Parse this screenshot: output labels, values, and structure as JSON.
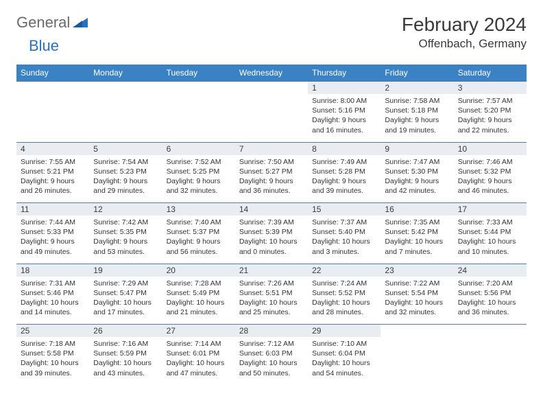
{
  "logo": {
    "part1": "General",
    "part2": "Blue"
  },
  "title": "February 2024",
  "location": "Offenbach, Germany",
  "colors": {
    "header_bg": "#3b82c4",
    "header_text": "#ffffff",
    "daynum_bg": "#e9edf2",
    "border": "#5a7a9a",
    "logo_gray": "#6a6a6a",
    "logo_blue": "#2a71b8"
  },
  "daysOfWeek": [
    "Sunday",
    "Monday",
    "Tuesday",
    "Wednesday",
    "Thursday",
    "Friday",
    "Saturday"
  ],
  "weeks": [
    [
      null,
      null,
      null,
      null,
      {
        "n": "1",
        "sr": "8:00 AM",
        "ss": "5:16 PM",
        "dl": "9 hours and 16 minutes."
      },
      {
        "n": "2",
        "sr": "7:58 AM",
        "ss": "5:18 PM",
        "dl": "9 hours and 19 minutes."
      },
      {
        "n": "3",
        "sr": "7:57 AM",
        "ss": "5:20 PM",
        "dl": "9 hours and 22 minutes."
      }
    ],
    [
      {
        "n": "4",
        "sr": "7:55 AM",
        "ss": "5:21 PM",
        "dl": "9 hours and 26 minutes."
      },
      {
        "n": "5",
        "sr": "7:54 AM",
        "ss": "5:23 PM",
        "dl": "9 hours and 29 minutes."
      },
      {
        "n": "6",
        "sr": "7:52 AM",
        "ss": "5:25 PM",
        "dl": "9 hours and 32 minutes."
      },
      {
        "n": "7",
        "sr": "7:50 AM",
        "ss": "5:27 PM",
        "dl": "9 hours and 36 minutes."
      },
      {
        "n": "8",
        "sr": "7:49 AM",
        "ss": "5:28 PM",
        "dl": "9 hours and 39 minutes."
      },
      {
        "n": "9",
        "sr": "7:47 AM",
        "ss": "5:30 PM",
        "dl": "9 hours and 42 minutes."
      },
      {
        "n": "10",
        "sr": "7:46 AM",
        "ss": "5:32 PM",
        "dl": "9 hours and 46 minutes."
      }
    ],
    [
      {
        "n": "11",
        "sr": "7:44 AM",
        "ss": "5:33 PM",
        "dl": "9 hours and 49 minutes."
      },
      {
        "n": "12",
        "sr": "7:42 AM",
        "ss": "5:35 PM",
        "dl": "9 hours and 53 minutes."
      },
      {
        "n": "13",
        "sr": "7:40 AM",
        "ss": "5:37 PM",
        "dl": "9 hours and 56 minutes."
      },
      {
        "n": "14",
        "sr": "7:39 AM",
        "ss": "5:39 PM",
        "dl": "10 hours and 0 minutes."
      },
      {
        "n": "15",
        "sr": "7:37 AM",
        "ss": "5:40 PM",
        "dl": "10 hours and 3 minutes."
      },
      {
        "n": "16",
        "sr": "7:35 AM",
        "ss": "5:42 PM",
        "dl": "10 hours and 7 minutes."
      },
      {
        "n": "17",
        "sr": "7:33 AM",
        "ss": "5:44 PM",
        "dl": "10 hours and 10 minutes."
      }
    ],
    [
      {
        "n": "18",
        "sr": "7:31 AM",
        "ss": "5:46 PM",
        "dl": "10 hours and 14 minutes."
      },
      {
        "n": "19",
        "sr": "7:29 AM",
        "ss": "5:47 PM",
        "dl": "10 hours and 17 minutes."
      },
      {
        "n": "20",
        "sr": "7:28 AM",
        "ss": "5:49 PM",
        "dl": "10 hours and 21 minutes."
      },
      {
        "n": "21",
        "sr": "7:26 AM",
        "ss": "5:51 PM",
        "dl": "10 hours and 25 minutes."
      },
      {
        "n": "22",
        "sr": "7:24 AM",
        "ss": "5:52 PM",
        "dl": "10 hours and 28 minutes."
      },
      {
        "n": "23",
        "sr": "7:22 AM",
        "ss": "5:54 PM",
        "dl": "10 hours and 32 minutes."
      },
      {
        "n": "24",
        "sr": "7:20 AM",
        "ss": "5:56 PM",
        "dl": "10 hours and 36 minutes."
      }
    ],
    [
      {
        "n": "25",
        "sr": "7:18 AM",
        "ss": "5:58 PM",
        "dl": "10 hours and 39 minutes."
      },
      {
        "n": "26",
        "sr": "7:16 AM",
        "ss": "5:59 PM",
        "dl": "10 hours and 43 minutes."
      },
      {
        "n": "27",
        "sr": "7:14 AM",
        "ss": "6:01 PM",
        "dl": "10 hours and 47 minutes."
      },
      {
        "n": "28",
        "sr": "7:12 AM",
        "ss": "6:03 PM",
        "dl": "10 hours and 50 minutes."
      },
      {
        "n": "29",
        "sr": "7:10 AM",
        "ss": "6:04 PM",
        "dl": "10 hours and 54 minutes."
      },
      null,
      null
    ]
  ],
  "labels": {
    "sunrise": "Sunrise: ",
    "sunset": "Sunset: ",
    "daylight": "Daylight: "
  }
}
